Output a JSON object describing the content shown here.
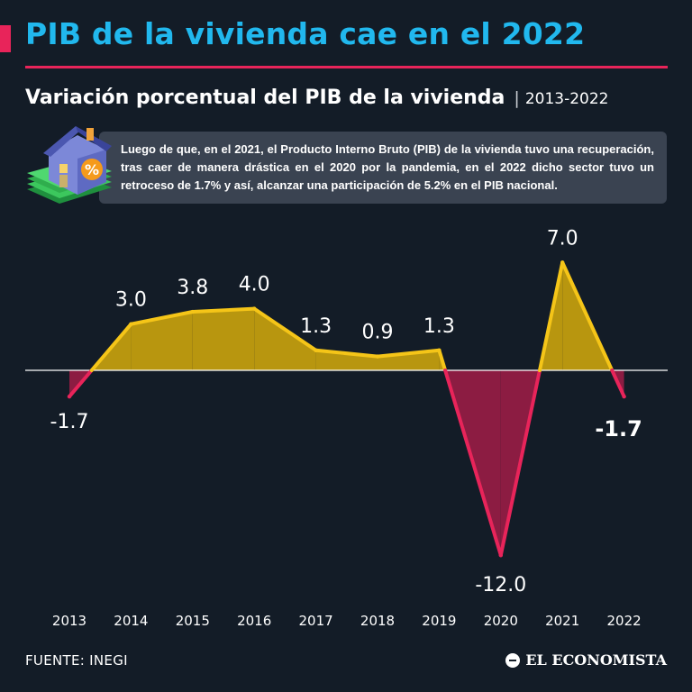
{
  "header": {
    "title": "PIB de la vivienda cae en el 2022",
    "subtitle": "Variación porcentual del PIB de la vivienda",
    "separator": "|",
    "range": "2013-2022"
  },
  "note": {
    "text": "Luego de que, en el 2021, el Producto Interno Bruto (PIB) de la vivienda tuvo una recuperación, tras caer de manera drástica en el 2020 por la pandemia, en el 2022 dicho sector tuvo un retroceso de 1.7% y así, alcanzar una participación de 5.2% en el PIB nacional."
  },
  "colors": {
    "title": "#21b8ee",
    "accent": "#e8245a",
    "positive_line": "#f5c518",
    "positive_fill": "#b8960f",
    "negative_line": "#e8245a",
    "negative_fill": "#8c1c42",
    "background": "#131c27",
    "note_box": "#3a4351"
  },
  "chart_data": {
    "type": "area",
    "title": "Variación porcentual del PIB de la vivienda",
    "categories": [
      "2013",
      "2014",
      "2015",
      "2016",
      "2017",
      "2018",
      "2019",
      "2020",
      "2021",
      "2022"
    ],
    "values": [
      -1.7,
      3.0,
      3.8,
      4.0,
      1.3,
      0.9,
      1.3,
      -12.0,
      7.0,
      -1.7
    ],
    "value_labels": [
      "-1.7",
      "3.0",
      "3.8",
      "4.0",
      "1.3",
      "0.9",
      "1.3",
      "-12.0",
      "7.0",
      "-1.7"
    ],
    "highlight_index": 9,
    "baseline": 0,
    "xlabel": "",
    "ylabel": "",
    "grid": false
  },
  "footer": {
    "source": "FUENTE: INEGI",
    "brand": "EL ECONOMISTA"
  },
  "icons": {
    "house": "house-with-percent-icon",
    "money": "money-stack-icon",
    "brand_mark": "el-economista-logo-icon"
  }
}
